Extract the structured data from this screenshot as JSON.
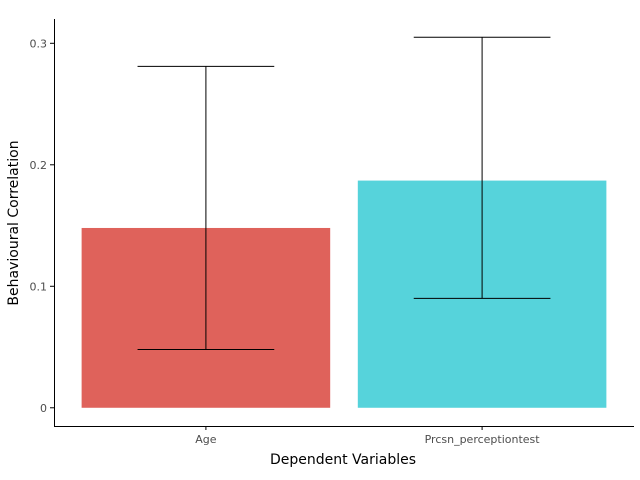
{
  "chart_data": {
    "type": "bar",
    "title": "",
    "xlabel": "Dependent Variables",
    "ylabel": "Behavioural Correlation",
    "categories": [
      "Age",
      "Prcsn_perceptiontest"
    ],
    "values": [
      0.148,
      0.187
    ],
    "error_low": [
      0.048,
      0.09
    ],
    "error_high": [
      0.281,
      0.305
    ],
    "colors": [
      "#df625b",
      "#56d3db"
    ],
    "ylim": [
      -0.015,
      0.32
    ],
    "yticks": [
      0,
      0.1,
      0.2,
      0.3
    ],
    "ytick_labels": [
      "0",
      "0.1",
      "0.2",
      "0.3"
    ],
    "grid": false,
    "legend": "none"
  }
}
